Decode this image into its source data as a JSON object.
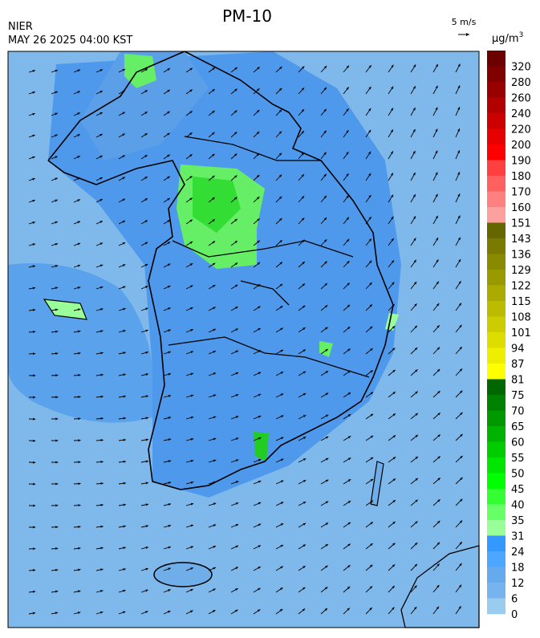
{
  "header": {
    "title": "PM-10",
    "agency": "NIER",
    "datetime": "MAY 26 2025 04:00 KST",
    "wind_scale": "5 m/s"
  },
  "colorbar": {
    "unit": "μg/m",
    "unit_power": "3",
    "labels": [
      320,
      280,
      260,
      240,
      220,
      200,
      190,
      180,
      170,
      160,
      151,
      143,
      136,
      129,
      122,
      115,
      108,
      101,
      94,
      87,
      81,
      75,
      70,
      65,
      60,
      55,
      50,
      45,
      40,
      35,
      31,
      24,
      18,
      12,
      6,
      0
    ],
    "colors": [
      "#6b0000",
      "#800000",
      "#990000",
      "#b30000",
      "#cc0000",
      "#e60000",
      "#ff0000",
      "#ff4040",
      "#ff6060",
      "#ff8080",
      "#ffa0a0",
      "#666600",
      "#7a7a00",
      "#8a8a00",
      "#999900",
      "#aaaa00",
      "#bbbb00",
      "#cccc00",
      "#dddd00",
      "#eeee00",
      "#ffff00",
      "#006600",
      "#008000",
      "#009900",
      "#00b300",
      "#00cc00",
      "#00e600",
      "#00ff00",
      "#33ff33",
      "#66ff66",
      "#99ff99",
      "#3399ff",
      "#4da6ff",
      "#66aaee",
      "#77b3ee",
      "#99ccee"
    ]
  }
}
